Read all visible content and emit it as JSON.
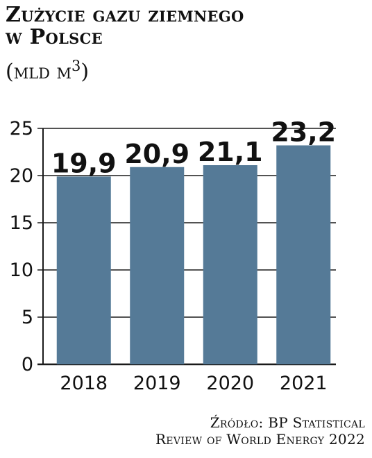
{
  "header": {
    "title_line1": "Zużycie gazu ziemnego",
    "title_line2": "w Polsce",
    "unit": "(mld m3)"
  },
  "source": {
    "line1": "Źródło: BP Statistical",
    "line2": "Review of World Energy 2022"
  },
  "colors": {
    "bar": "#557a97",
    "grid": "#1a1a1a",
    "text": "#111111"
  },
  "chart_data": {
    "type": "bar",
    "categories": [
      "2018",
      "2019",
      "2020",
      "2021"
    ],
    "values": [
      19.9,
      20.9,
      21.1,
      23.2
    ],
    "value_labels": [
      "19,9",
      "20,9",
      "21,1",
      "23,2"
    ],
    "yticks": [
      0,
      5,
      10,
      15,
      20,
      25
    ],
    "ylim": [
      0,
      25
    ],
    "title": "Zużycie gazu ziemnego w Polsce",
    "ylabel": "(mld m3)",
    "xlabel": "",
    "grid": true,
    "legend": "none"
  }
}
